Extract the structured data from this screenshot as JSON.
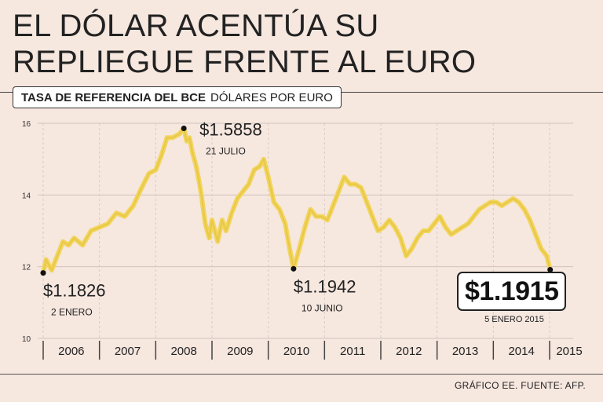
{
  "headline": {
    "line1": "EL DÓLAR ACENTÚA SU",
    "line2": "REPLIEGUE FRENTE AL EURO"
  },
  "subtitle": {
    "bold": "TASA DE REFERENCIA DEL BCE",
    "normal": "DÓLARES POR EURO"
  },
  "source": "GRÁFICO EE. FUENTE: AFP.",
  "colors": {
    "line": "#f2d55c",
    "marker": "#111111",
    "background": "#f6e7df"
  },
  "chart_data": {
    "type": "line",
    "title": "TASA DE REFERENCIA DEL BCE",
    "ylabel": "DÓLARES POR EURO",
    "ylim": [
      1.0,
      1.6
    ],
    "yticks": [
      1.0,
      1.2,
      1.4,
      1.6
    ],
    "ytick_labels": [
      "10",
      "12",
      "14",
      "16"
    ],
    "xlim": [
      2006.0,
      2015.0
    ],
    "xtick_labels": [
      "2006",
      "2007",
      "2008",
      "2009",
      "2010",
      "2011",
      "2012",
      "2013",
      "2014",
      "2015"
    ],
    "series": [
      {
        "name": "Dólares por euro",
        "x": [
          2006.0,
          2006.05,
          2006.15,
          2006.25,
          2006.35,
          2006.45,
          2006.55,
          2006.7,
          2006.85,
          2007.0,
          2007.15,
          2007.3,
          2007.45,
          2007.6,
          2007.75,
          2007.88,
          2008.0,
          2008.1,
          2008.2,
          2008.3,
          2008.42,
          2008.5,
          2008.55,
          2008.6,
          2008.65,
          2008.72,
          2008.78,
          2008.82,
          2008.88,
          2008.95,
          2009.0,
          2009.05,
          2009.1,
          2009.18,
          2009.25,
          2009.35,
          2009.45,
          2009.55,
          2009.65,
          2009.75,
          2009.85,
          2009.92,
          2010.0,
          2010.1,
          2010.2,
          2010.3,
          2010.38,
          2010.45,
          2010.55,
          2010.65,
          2010.75,
          2010.85,
          2010.95,
          2011.05,
          2011.15,
          2011.25,
          2011.35,
          2011.45,
          2011.55,
          2011.65,
          2011.75,
          2011.85,
          2011.95,
          2012.05,
          2012.15,
          2012.25,
          2012.35,
          2012.45,
          2012.55,
          2012.65,
          2012.75,
          2012.85,
          2012.95,
          2013.05,
          2013.15,
          2013.25,
          2013.35,
          2013.45,
          2013.55,
          2013.65,
          2013.75,
          2013.85,
          2013.95,
          2014.05,
          2014.15,
          2014.25,
          2014.35,
          2014.45,
          2014.55,
          2014.65,
          2014.75,
          2014.85,
          2014.95,
          2015.01
        ],
        "values": [
          1.1826,
          1.22,
          1.19,
          1.23,
          1.27,
          1.26,
          1.28,
          1.26,
          1.3,
          1.31,
          1.32,
          1.35,
          1.34,
          1.37,
          1.42,
          1.46,
          1.47,
          1.51,
          1.56,
          1.56,
          1.57,
          1.5858,
          1.55,
          1.56,
          1.52,
          1.48,
          1.43,
          1.39,
          1.32,
          1.28,
          1.33,
          1.3,
          1.27,
          1.33,
          1.3,
          1.35,
          1.39,
          1.41,
          1.43,
          1.47,
          1.48,
          1.5,
          1.45,
          1.38,
          1.36,
          1.32,
          1.25,
          1.1942,
          1.25,
          1.31,
          1.36,
          1.34,
          1.34,
          1.33,
          1.37,
          1.41,
          1.45,
          1.43,
          1.43,
          1.42,
          1.38,
          1.34,
          1.3,
          1.31,
          1.33,
          1.31,
          1.28,
          1.23,
          1.25,
          1.28,
          1.3,
          1.3,
          1.32,
          1.34,
          1.31,
          1.29,
          1.3,
          1.31,
          1.32,
          1.34,
          1.36,
          1.37,
          1.38,
          1.38,
          1.37,
          1.38,
          1.39,
          1.38,
          1.36,
          1.33,
          1.29,
          1.25,
          1.23,
          1.1915
        ]
      }
    ],
    "annotations": [
      {
        "x": 2006.0,
        "value": 1.1826,
        "label": "$1.1826",
        "date": "2 ENERO",
        "position": "below"
      },
      {
        "x": 2008.5,
        "value": 1.5858,
        "label": "$1.5858",
        "date": "21 JULIO",
        "position": "right"
      },
      {
        "x": 2010.45,
        "value": 1.1942,
        "label": "$1.1942",
        "date": "10 JUNIO",
        "position": "below"
      },
      {
        "x": 2015.01,
        "value": 1.1915,
        "label": "$1.1915",
        "date": "5 ENERO 2015",
        "position": "below-left",
        "highlight": true
      }
    ]
  }
}
